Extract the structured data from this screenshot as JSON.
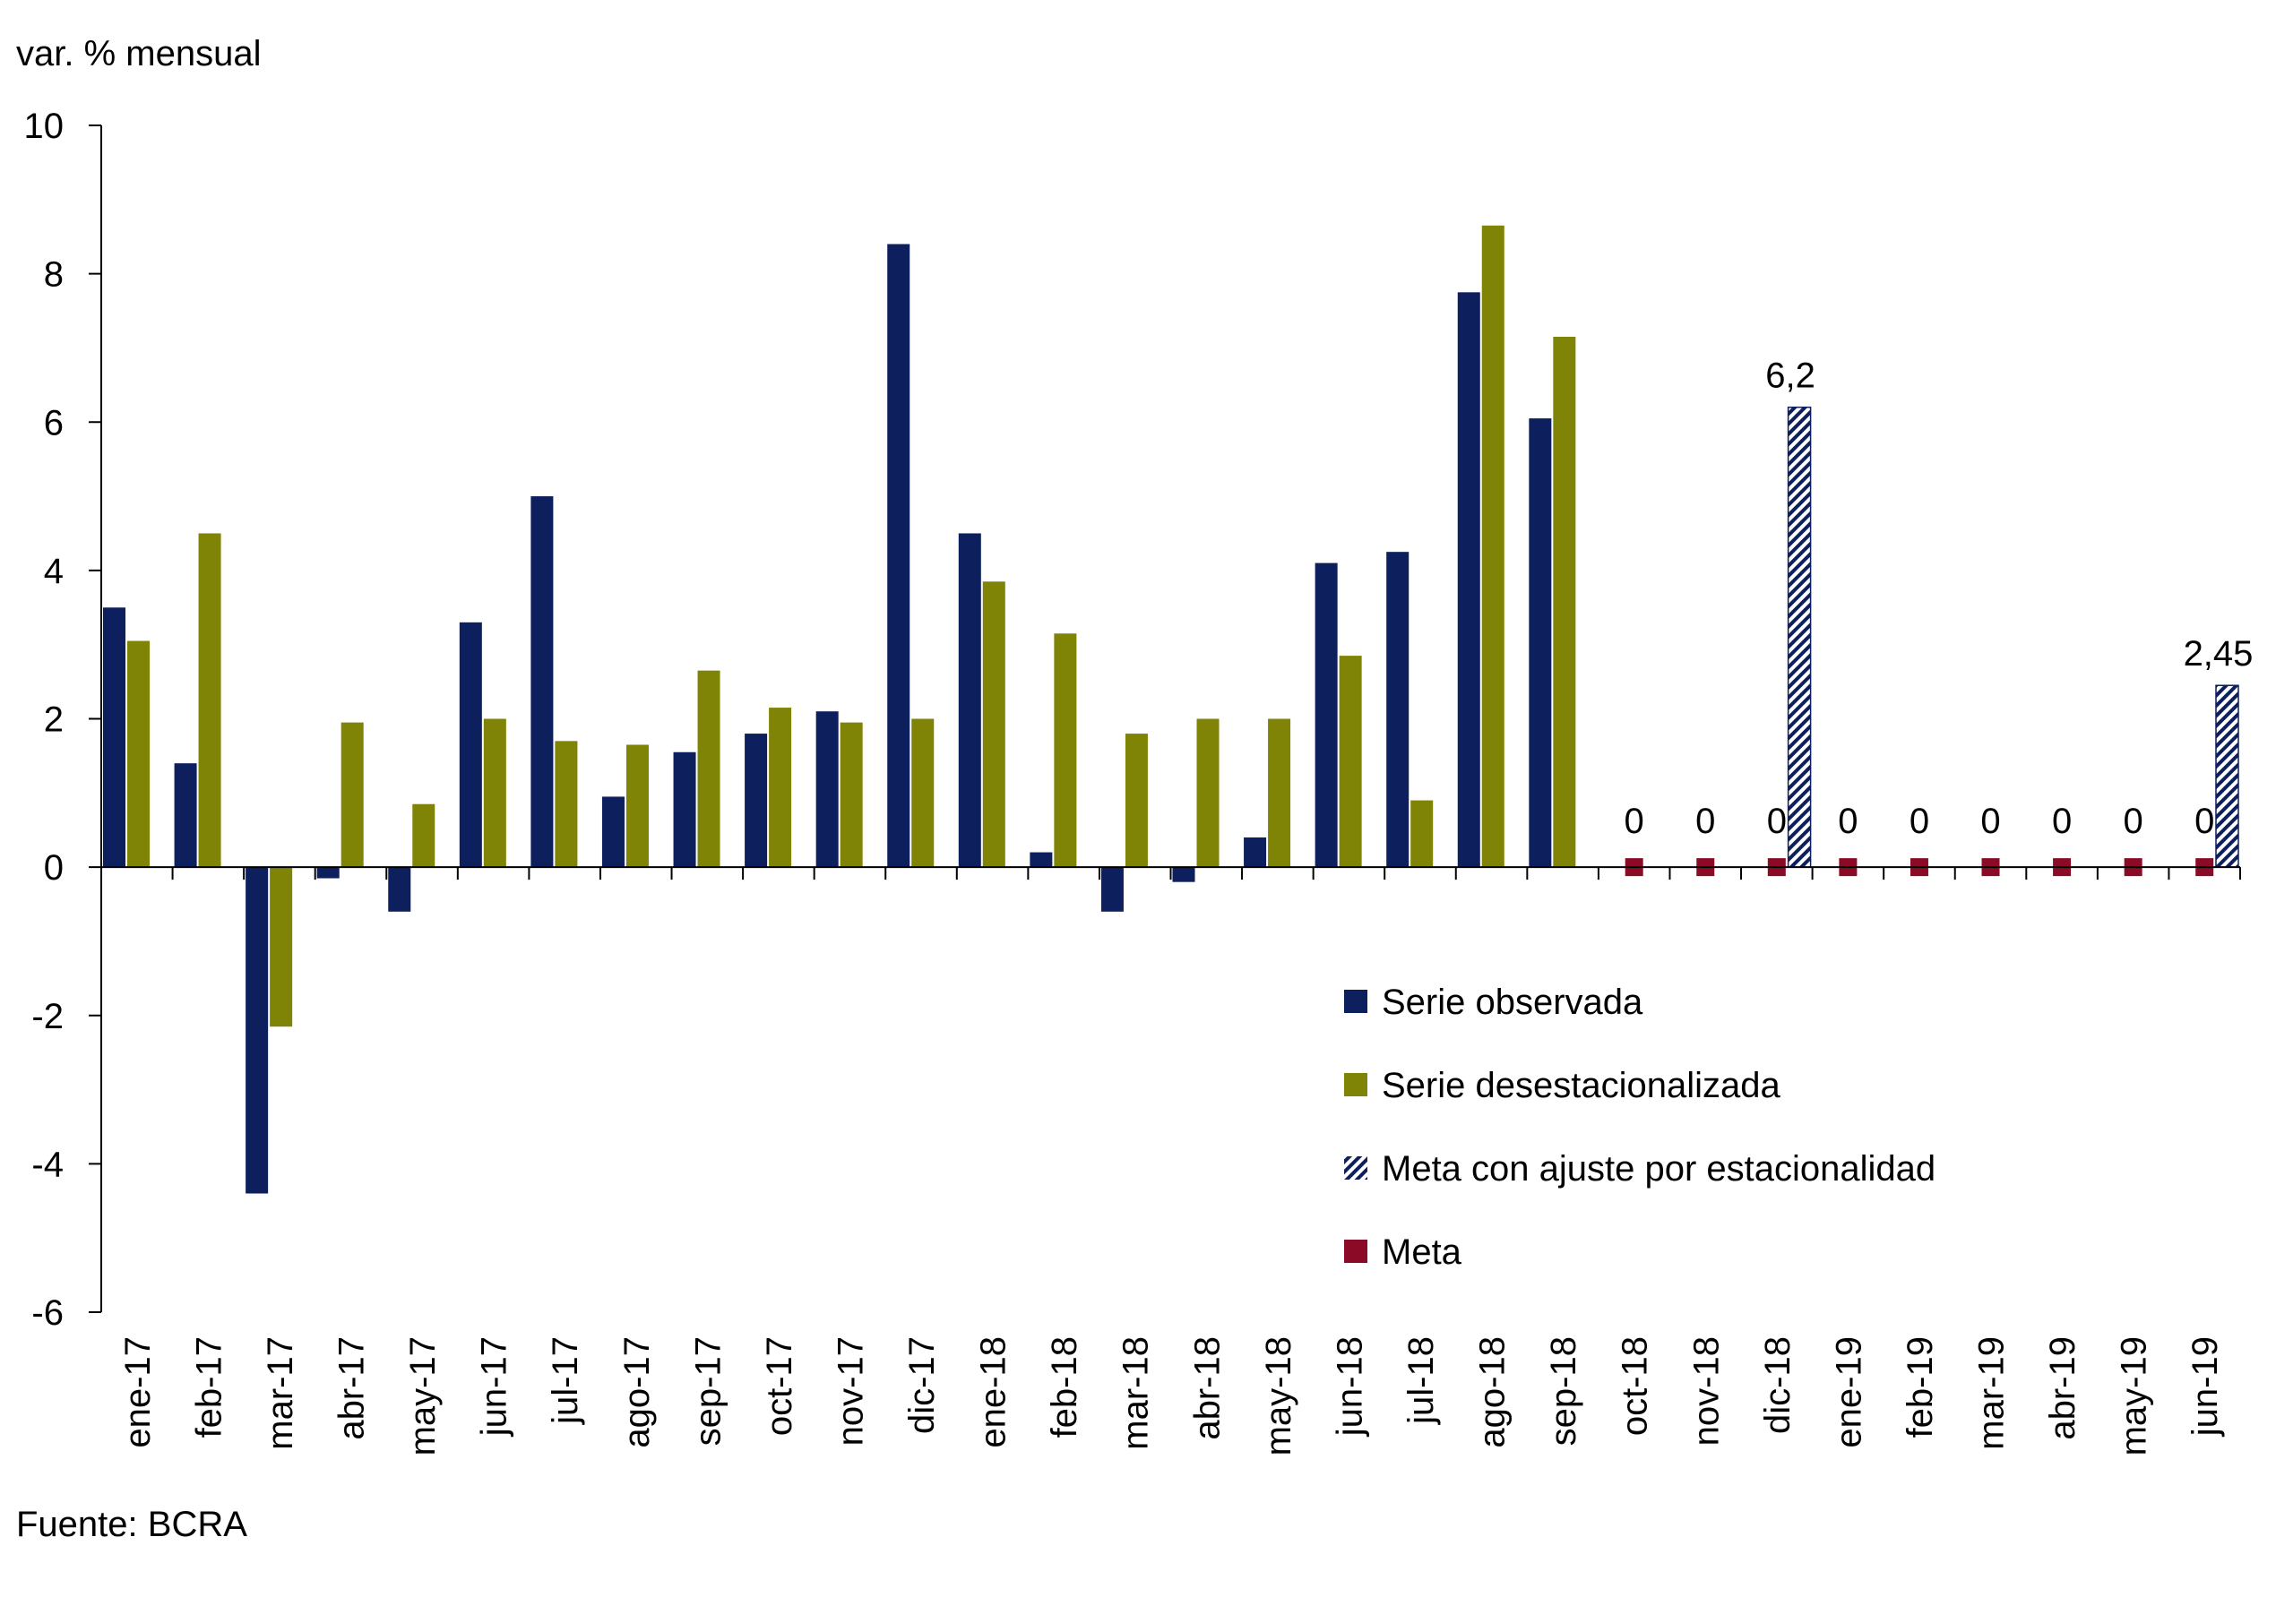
{
  "chart_data": {
    "type": "bar",
    "title": "",
    "ylabel": "var. % mensual",
    "xlabel": "",
    "source": "Fuente: BCRA",
    "ylim": [
      -6,
      10
    ],
    "yticks": [
      -6,
      -4,
      -2,
      0,
      2,
      4,
      6,
      8,
      10
    ],
    "ytick_labels": [
      "-6",
      "-4",
      "-2",
      "0",
      "2",
      "4",
      "6",
      "8",
      "10"
    ],
    "categories": [
      "ene-17",
      "feb-17",
      "mar-17",
      "abr-17",
      "may-17",
      "jun-17",
      "jul-17",
      "ago-17",
      "sep-17",
      "oct-17",
      "nov-17",
      "dic-17",
      "ene-18",
      "feb-18",
      "mar-18",
      "abr-18",
      "may-18",
      "jun-18",
      "jul-18",
      "ago-18",
      "sep-18",
      "oct-18",
      "nov-18",
      "dic-18",
      "ene-19",
      "feb-19",
      "mar-19",
      "abr-19",
      "may-19",
      "jun-19"
    ],
    "series": [
      {
        "name": "Serie observada",
        "kind": "bar",
        "color": "#0d1f5c",
        "values": [
          3.5,
          1.4,
          -4.4,
          -0.15,
          -0.6,
          3.3,
          5.0,
          0.95,
          1.55,
          1.8,
          2.1,
          8.4,
          4.5,
          0.2,
          -0.6,
          -0.2,
          0.4,
          4.1,
          4.25,
          7.75,
          6.05,
          null,
          null,
          null,
          null,
          null,
          null,
          null,
          null,
          null
        ]
      },
      {
        "name": "Serie desestacionalizada",
        "kind": "bar",
        "color": "#7f8406",
        "values": [
          3.05,
          4.5,
          -2.15,
          1.95,
          0.85,
          2.0,
          1.7,
          1.65,
          2.65,
          2.15,
          1.95,
          2.0,
          3.85,
          3.15,
          1.8,
          2.0,
          2.0,
          2.85,
          0.9,
          8.65,
          7.15,
          null,
          null,
          null,
          null,
          null,
          null,
          null,
          null,
          null
        ]
      },
      {
        "name": "Meta con ajuste por estacionalidad",
        "kind": "hatched-bar",
        "color": "#0d1f5c",
        "values": [
          null,
          null,
          null,
          null,
          null,
          null,
          null,
          null,
          null,
          null,
          null,
          null,
          null,
          null,
          null,
          null,
          null,
          null,
          null,
          null,
          null,
          null,
          null,
          6.2,
          null,
          null,
          null,
          null,
          null,
          2.45
        ],
        "labels": {
          "23": "6,2",
          "29": "2,45"
        }
      },
      {
        "name": "Meta",
        "kind": "marker",
        "color": "#8b0a26",
        "values": [
          null,
          null,
          null,
          null,
          null,
          null,
          null,
          null,
          null,
          null,
          null,
          null,
          null,
          null,
          null,
          null,
          null,
          null,
          null,
          null,
          null,
          0,
          0,
          0,
          0,
          0,
          0,
          0,
          0,
          0
        ],
        "labels": {
          "21": "0",
          "22": "0",
          "23": "0",
          "24": "0",
          "25": "0",
          "26": "0",
          "27": "0",
          "28": "0",
          "29": "0"
        }
      }
    ],
    "legend": {
      "position": "bottom-right",
      "entries": [
        "Serie observada",
        "Serie desestacionalizada",
        "Meta con ajuste por estacionalidad",
        "Meta"
      ]
    },
    "grid": false
  }
}
